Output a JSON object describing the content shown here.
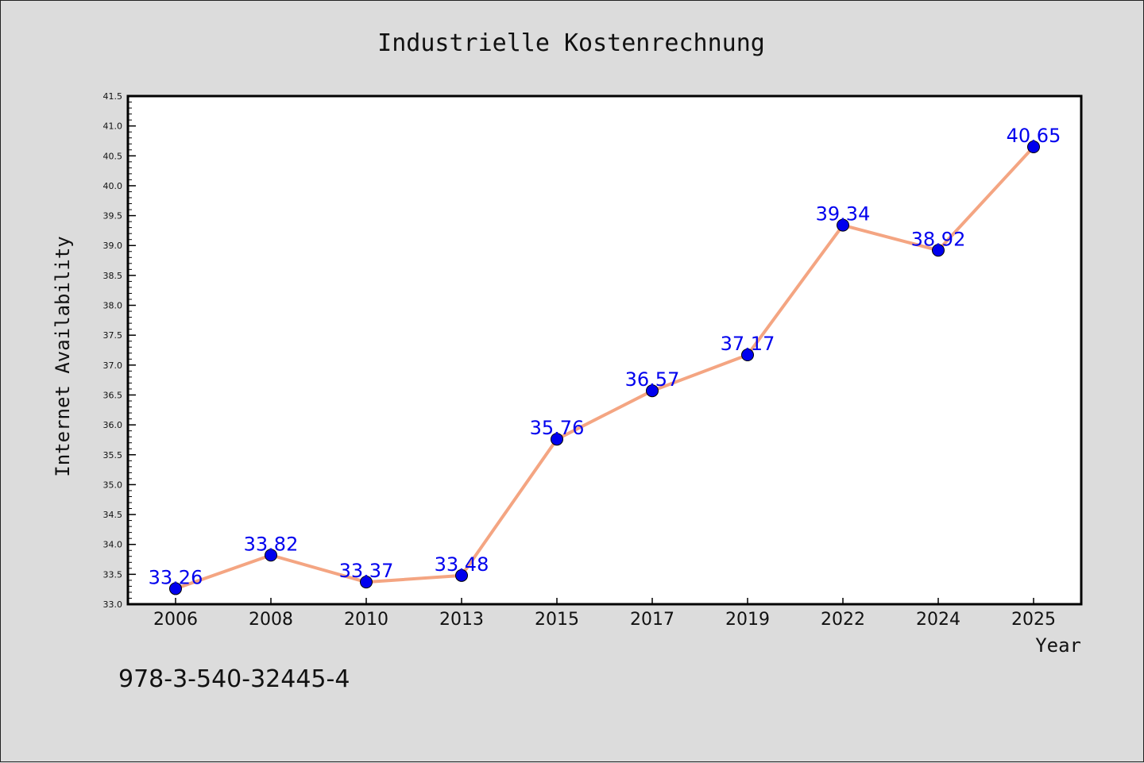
{
  "chart_data": {
    "type": "line",
    "title": "Industrielle Kostenrechnung",
    "xlabel": "Year",
    "ylabel": "Internet Availability",
    "categories": [
      "2006",
      "2008",
      "2010",
      "2013",
      "2015",
      "2017",
      "2019",
      "2022",
      "2024",
      "2025"
    ],
    "series": [
      {
        "values": [
          33.26,
          33.82,
          33.37,
          33.48,
          35.76,
          36.57,
          37.17,
          39.34,
          38.92,
          40.65
        ],
        "data_labels": [
          "33.26",
          "33.82",
          "33.37",
          "33.48",
          "35.76",
          "36.57",
          "37.17",
          "39.34",
          "38.92",
          "40.65"
        ]
      }
    ],
    "ylim": [
      33.0,
      41.5
    ],
    "yticks": [
      "33.0",
      "33.5",
      "34.0",
      "34.5",
      "35.0",
      "35.5",
      "36.0",
      "36.5",
      "37.0",
      "37.5",
      "38.0",
      "38.5",
      "39.0",
      "39.5",
      "40.0",
      "40.5",
      "41.0",
      "41.5"
    ],
    "grid": false,
    "legend": "none",
    "colors": {
      "line": "#f4a582",
      "marker": "#0000ee",
      "data_label": "#0000ee",
      "background": "#dcdcdc",
      "plot_background": "#ffffff"
    }
  },
  "footer": {
    "text": "978-3-540-32445-4"
  }
}
